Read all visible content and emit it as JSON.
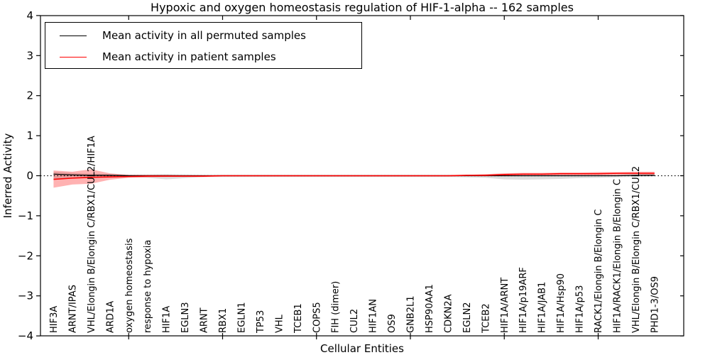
{
  "title": "Hypoxic and oxygen homeostasis regulation of HIF-1-alpha -- 162 samples",
  "axes": {
    "xlabel": "Cellular Entities",
    "ylabel": "Inferred Activity",
    "ylim": [
      -4,
      4
    ],
    "yticks": [
      -4,
      -3,
      -2,
      -1,
      0,
      1,
      2,
      3,
      4
    ]
  },
  "legend": {
    "items": [
      {
        "label": "Mean activity in all permuted samples",
        "color": "#000000"
      },
      {
        "label": "Mean activity in patient samples",
        "color": "#ff0000"
      }
    ]
  },
  "colors": {
    "permuted_line": "#000000",
    "patient_line": "#ff0000",
    "permuted_band": "rgba(0,0,0,0.13)",
    "patient_band": "rgba(255,0,0,0.30)",
    "zero_line": "#000000"
  },
  "chart_data": {
    "type": "line",
    "title": "Hypoxic and oxygen homeostasis regulation of HIF-1-alpha -- 162 samples",
    "xlabel": "Cellular Entities",
    "ylabel": "Inferred Activity",
    "ylim": [
      -4,
      4
    ],
    "grid": false,
    "legend_position": "upper left",
    "zero_line": 0,
    "categories": [
      "HIF3A",
      "ARNT/IPAS",
      "VHL/Elongin B/Elongin C/RBX1/CUL2/HIF1A",
      "ARD1A",
      "oxygen homeostasis",
      "response to hypoxia",
      "HIF1A",
      "EGLN3",
      "ARNT",
      "RBX1",
      "EGLN1",
      "TP53",
      "VHL",
      "TCEB1",
      "COPS5",
      "FIH (dimer)",
      "CUL2",
      "HIF1AN",
      "OS9",
      "GNB2L1",
      "HSP90AA1",
      "CDKN2A",
      "EGLN2",
      "TCEB2",
      "HIF1A/ARNT",
      "HIF1A/p19ARF",
      "HIF1A/JAB1",
      "HIF1A/Hsp90",
      "HIF1A/p53",
      "RACK1/Elongin B/Elongin C",
      "HIF1A/RACK1/Elongin B/Elongin C",
      "VHL/Elongin B/Elongin C/RBX1/CUL2",
      "PHD1-3/OS9"
    ],
    "series": [
      {
        "name": "Mean activity in all permuted samples",
        "color": "#000000",
        "values": [
          0.04,
          0.02,
          0.01,
          0.01,
          0.0,
          0.0,
          0.0,
          0.0,
          0.0,
          0.0,
          0.0,
          0.0,
          0.0,
          0.0,
          0.0,
          0.0,
          0.0,
          0.0,
          0.0,
          0.0,
          0.0,
          0.0,
          0.0,
          0.0,
          0.0,
          0.0,
          0.0,
          0.0,
          0.0,
          0.0,
          0.0,
          0.01,
          0.01
        ]
      },
      {
        "name": "Mean activity in patient samples",
        "color": "#ff0000",
        "values": [
          -0.09,
          -0.06,
          -0.04,
          -0.03,
          -0.02,
          -0.01,
          -0.01,
          -0.01,
          -0.01,
          0.0,
          0.0,
          0.0,
          0.0,
          0.0,
          0.0,
          0.0,
          0.0,
          0.0,
          0.0,
          0.0,
          0.0,
          0.0,
          0.01,
          0.01,
          0.03,
          0.04,
          0.04,
          0.05,
          0.05,
          0.05,
          0.06,
          0.06,
          0.06
        ]
      }
    ],
    "bands": [
      {
        "name": "permuted samples range",
        "color": "rgba(0,0,0,0.13)",
        "upper": [
          0.1,
          0.07,
          0.05,
          0.04,
          0.03,
          0.03,
          0.04,
          0.03,
          0.02,
          0.02,
          0.02,
          0.02,
          0.02,
          0.02,
          0.02,
          0.02,
          0.02,
          0.02,
          0.02,
          0.02,
          0.02,
          0.02,
          0.02,
          0.02,
          0.02,
          0.02,
          0.02,
          0.02,
          0.02,
          0.02,
          0.02,
          0.02,
          0.03
        ],
        "lower": [
          -0.08,
          -0.06,
          -0.05,
          -0.04,
          -0.03,
          -0.05,
          -0.09,
          -0.06,
          -0.03,
          -0.03,
          -0.03,
          -0.03,
          -0.03,
          -0.03,
          -0.03,
          -0.03,
          -0.03,
          -0.03,
          -0.03,
          -0.03,
          -0.03,
          -0.03,
          -0.04,
          -0.05,
          -0.09,
          -0.1,
          -0.09,
          -0.08,
          -0.06,
          -0.05,
          -0.04,
          -0.03,
          -0.02
        ]
      },
      {
        "name": "patient samples range",
        "color": "rgba(255,0,0,0.30)",
        "upper": [
          0.13,
          0.1,
          0.16,
          0.06,
          0.02,
          0.02,
          0.02,
          0.01,
          0.01,
          0.01,
          0.01,
          0.01,
          0.01,
          0.01,
          0.01,
          0.01,
          0.01,
          0.01,
          0.01,
          0.01,
          0.01,
          0.01,
          0.02,
          0.04,
          0.06,
          0.07,
          0.07,
          0.08,
          0.08,
          0.09,
          0.09,
          0.1,
          0.1
        ],
        "lower": [
          -0.3,
          -0.22,
          -0.2,
          -0.1,
          -0.05,
          -0.04,
          -0.03,
          -0.03,
          -0.03,
          -0.02,
          -0.02,
          -0.02,
          -0.02,
          -0.02,
          -0.02,
          -0.02,
          -0.02,
          -0.02,
          -0.02,
          -0.02,
          -0.02,
          -0.02,
          -0.01,
          -0.01,
          0.0,
          0.01,
          0.01,
          0.02,
          0.02,
          0.02,
          0.02,
          0.03,
          0.02
        ]
      }
    ]
  }
}
